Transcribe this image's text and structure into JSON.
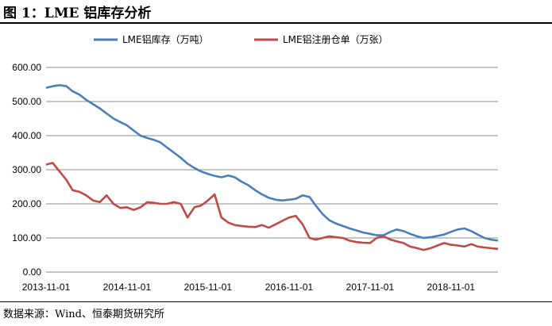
{
  "figure_title": "图 1：LME 铝库存分析",
  "source_note": "数据来源：Wind、恒泰期货研究所",
  "chart_data": {
    "type": "line",
    "title": "",
    "xlabel": "",
    "ylabel": "",
    "ylim": [
      0,
      600
    ],
    "yticks": [
      "0.00",
      "100.00",
      "200.00",
      "300.00",
      "400.00",
      "500.00",
      "600.00"
    ],
    "xticks": [
      "2013-11-01",
      "2014-11-01",
      "2015-11-01",
      "2016-11-01",
      "2017-11-01",
      "2018-11-01"
    ],
    "xlim": [
      "2013-11-01",
      "2019-06-01"
    ],
    "grid": "horizontal",
    "legend_position": "top",
    "series": [
      {
        "name": "LME铝库存（万吨）",
        "color": "#4a7ebb",
        "points": [
          [
            "2013-11-01",
            540
          ],
          [
            "2013-12-01",
            545
          ],
          [
            "2014-01-01",
            548
          ],
          [
            "2014-02-01",
            545
          ],
          [
            "2014-03-01",
            530
          ],
          [
            "2014-04-01",
            520
          ],
          [
            "2014-05-01",
            505
          ],
          [
            "2014-06-01",
            492
          ],
          [
            "2014-07-01",
            480
          ],
          [
            "2014-08-01",
            465
          ],
          [
            "2014-09-01",
            450
          ],
          [
            "2014-10-01",
            440
          ],
          [
            "2014-11-01",
            430
          ],
          [
            "2014-12-01",
            415
          ],
          [
            "2015-01-01",
            400
          ],
          [
            "2015-02-01",
            393
          ],
          [
            "2015-03-01",
            388
          ],
          [
            "2015-04-01",
            380
          ],
          [
            "2015-05-01",
            365
          ],
          [
            "2015-06-01",
            350
          ],
          [
            "2015-07-01",
            335
          ],
          [
            "2015-08-01",
            318
          ],
          [
            "2015-09-01",
            305
          ],
          [
            "2015-10-01",
            295
          ],
          [
            "2015-11-01",
            288
          ],
          [
            "2015-12-01",
            282
          ],
          [
            "2016-01-01",
            278
          ],
          [
            "2016-02-01",
            283
          ],
          [
            "2016-03-01",
            278
          ],
          [
            "2016-04-01",
            265
          ],
          [
            "2016-05-01",
            255
          ],
          [
            "2016-06-01",
            240
          ],
          [
            "2016-07-01",
            228
          ],
          [
            "2016-08-01",
            218
          ],
          [
            "2016-09-01",
            212
          ],
          [
            "2016-10-01",
            210
          ],
          [
            "2016-11-01",
            212
          ],
          [
            "2016-12-01",
            215
          ],
          [
            "2017-01-01",
            225
          ],
          [
            "2017-02-01",
            220
          ],
          [
            "2017-03-01",
            195
          ],
          [
            "2017-04-01",
            170
          ],
          [
            "2017-05-01",
            152
          ],
          [
            "2017-06-01",
            142
          ],
          [
            "2017-07-01",
            135
          ],
          [
            "2017-08-01",
            128
          ],
          [
            "2017-09-01",
            122
          ],
          [
            "2017-10-01",
            116
          ],
          [
            "2017-11-01",
            112
          ],
          [
            "2017-12-01",
            108
          ],
          [
            "2018-01-01",
            108
          ],
          [
            "2018-02-01",
            118
          ],
          [
            "2018-03-01",
            125
          ],
          [
            "2018-04-01",
            120
          ],
          [
            "2018-05-01",
            112
          ],
          [
            "2018-06-01",
            105
          ],
          [
            "2018-07-01",
            100
          ],
          [
            "2018-08-01",
            102
          ],
          [
            "2018-09-01",
            106
          ],
          [
            "2018-10-01",
            110
          ],
          [
            "2018-11-01",
            118
          ],
          [
            "2018-12-01",
            125
          ],
          [
            "2019-01-01",
            128
          ],
          [
            "2019-02-01",
            120
          ],
          [
            "2019-03-01",
            110
          ],
          [
            "2019-04-01",
            100
          ],
          [
            "2019-05-01",
            95
          ],
          [
            "2019-06-01",
            92
          ]
        ]
      },
      {
        "name": "LME铝注册仓单（万张）",
        "color": "#be4b48",
        "points": [
          [
            "2013-11-01",
            315
          ],
          [
            "2013-12-01",
            320
          ],
          [
            "2014-01-01",
            295
          ],
          [
            "2014-02-01",
            270
          ],
          [
            "2014-03-01",
            240
          ],
          [
            "2014-04-01",
            235
          ],
          [
            "2014-05-01",
            225
          ],
          [
            "2014-06-01",
            210
          ],
          [
            "2014-07-01",
            205
          ],
          [
            "2014-08-01",
            225
          ],
          [
            "2014-09-01",
            200
          ],
          [
            "2014-10-01",
            188
          ],
          [
            "2014-11-01",
            190
          ],
          [
            "2014-12-01",
            182
          ],
          [
            "2015-01-01",
            190
          ],
          [
            "2015-02-01",
            205
          ],
          [
            "2015-03-01",
            203
          ],
          [
            "2015-04-01",
            200
          ],
          [
            "2015-05-01",
            200
          ],
          [
            "2015-06-01",
            205
          ],
          [
            "2015-07-01",
            200
          ],
          [
            "2015-08-01",
            160
          ],
          [
            "2015-09-01",
            190
          ],
          [
            "2015-10-01",
            195
          ],
          [
            "2015-11-01",
            210
          ],
          [
            "2015-12-01",
            228
          ],
          [
            "2016-01-01",
            160
          ],
          [
            "2016-02-01",
            145
          ],
          [
            "2016-03-01",
            138
          ],
          [
            "2016-04-01",
            135
          ],
          [
            "2016-05-01",
            133
          ],
          [
            "2016-06-01",
            132
          ],
          [
            "2016-07-01",
            138
          ],
          [
            "2016-08-01",
            130
          ],
          [
            "2016-09-01",
            140
          ],
          [
            "2016-10-01",
            150
          ],
          [
            "2016-11-01",
            160
          ],
          [
            "2016-12-01",
            165
          ],
          [
            "2017-01-01",
            140
          ],
          [
            "2017-02-01",
            100
          ],
          [
            "2017-03-01",
            95
          ],
          [
            "2017-04-01",
            100
          ],
          [
            "2017-05-01",
            105
          ],
          [
            "2017-06-01",
            102
          ],
          [
            "2017-07-01",
            100
          ],
          [
            "2017-08-01",
            92
          ],
          [
            "2017-09-01",
            88
          ],
          [
            "2017-10-01",
            86
          ],
          [
            "2017-11-01",
            85
          ],
          [
            "2017-12-01",
            100
          ],
          [
            "2018-01-01",
            105
          ],
          [
            "2018-02-01",
            95
          ],
          [
            "2018-03-01",
            90
          ],
          [
            "2018-04-01",
            85
          ],
          [
            "2018-05-01",
            75
          ],
          [
            "2018-06-01",
            70
          ],
          [
            "2018-07-01",
            65
          ],
          [
            "2018-08-01",
            70
          ],
          [
            "2018-09-01",
            78
          ],
          [
            "2018-10-01",
            85
          ],
          [
            "2018-11-01",
            80
          ],
          [
            "2018-12-01",
            78
          ],
          [
            "2019-01-01",
            75
          ],
          [
            "2019-02-01",
            82
          ],
          [
            "2019-03-01",
            75
          ],
          [
            "2019-04-01",
            72
          ],
          [
            "2019-05-01",
            70
          ],
          [
            "2019-06-01",
            68
          ]
        ]
      }
    ]
  }
}
